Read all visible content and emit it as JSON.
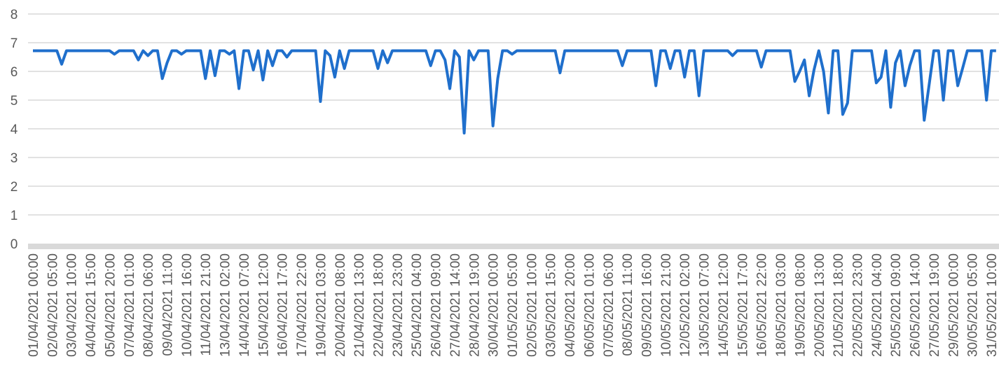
{
  "chart_data": {
    "type": "line",
    "categories": [
      "01/04/2021 00:00",
      null,
      null,
      null,
      "02/04/2021 05:00",
      null,
      null,
      null,
      "03/04/2021 10:00",
      null,
      null,
      null,
      "04/04/2021 15:00",
      null,
      null,
      null,
      "05/04/2021 20:00",
      null,
      null,
      null,
      "07/04/2021 01:00",
      null,
      null,
      null,
      "08/04/2021 06:00",
      null,
      null,
      null,
      "09/04/2021 11:00",
      null,
      null,
      null,
      "10/04/2021 16:00",
      null,
      null,
      null,
      "11/04/2021 21:00",
      null,
      null,
      null,
      "13/04/2021 02:00",
      null,
      null,
      null,
      "14/04/2021 07:00",
      null,
      null,
      null,
      "15/04/2021 12:00",
      null,
      null,
      null,
      "16/04/2021 17:00",
      null,
      null,
      null,
      "17/04/2021 22:00",
      null,
      null,
      null,
      "19/04/2021 03:00",
      null,
      null,
      null,
      "20/04/2021 08:00",
      null,
      null,
      null,
      "21/04/2021 13:00",
      null,
      null,
      null,
      "22/04/2021 18:00",
      null,
      null,
      null,
      "23/04/2021 23:00",
      null,
      null,
      null,
      "25/04/2021 04:00",
      null,
      null,
      null,
      "26/04/2021 09:00",
      null,
      null,
      null,
      "27/04/2021 14:00",
      null,
      null,
      null,
      "28/04/2021 19:00",
      null,
      null,
      null,
      "30/04/2021 00:00",
      null,
      null,
      null,
      "01/05/2021 05:00",
      null,
      null,
      null,
      "02/05/2021 10:00",
      null,
      null,
      null,
      "03/05/2021 15:00",
      null,
      null,
      null,
      "04/05/2021 20:00",
      null,
      null,
      null,
      "06/05/2021 01:00",
      null,
      null,
      null,
      "07/05/2021 06:00",
      null,
      null,
      null,
      "08/05/2021 11:00",
      null,
      null,
      null,
      "09/05/2021 16:00",
      null,
      null,
      null,
      "10/05/2021 21:00",
      null,
      null,
      null,
      "12/05/2021 02:00",
      null,
      null,
      null,
      "13/05/2021 07:00",
      null,
      null,
      null,
      "14/05/2021 12:00",
      null,
      null,
      null,
      "15/05/2021 17:00",
      null,
      null,
      null,
      "16/05/2021 22:00",
      null,
      null,
      null,
      "18/05/2021 03:00",
      null,
      null,
      null,
      "19/05/2021 08:00",
      null,
      null,
      null,
      "20/05/2021 13:00",
      null,
      null,
      null,
      "21/05/2021 18:00",
      null,
      null,
      null,
      "22/05/2021 23:00",
      null,
      null,
      null,
      "24/05/2021 04:00",
      null,
      null,
      null,
      "25/05/2021 09:00",
      null,
      null,
      null,
      "26/05/2021 14:00",
      null,
      null,
      null,
      "27/05/2021 19:00",
      null,
      null,
      null,
      "29/05/2021 00:00",
      null,
      null,
      null,
      "30/05/2021 05:00",
      null,
      null,
      null,
      "31/05/2021 10:00",
      null
    ],
    "series": [
      {
        "name": "",
        "color": "#1f6fcc",
        "values": [
          6.72,
          6.72,
          6.72,
          6.72,
          6.72,
          6.72,
          6.25,
          6.72,
          6.72,
          6.72,
          6.72,
          6.72,
          6.72,
          6.72,
          6.72,
          6.72,
          6.72,
          6.6,
          6.72,
          6.72,
          6.72,
          6.72,
          6.4,
          6.72,
          6.55,
          6.72,
          6.72,
          5.75,
          6.3,
          6.72,
          6.72,
          6.6,
          6.72,
          6.72,
          6.72,
          6.72,
          5.75,
          6.72,
          5.85,
          6.72,
          6.72,
          6.6,
          6.72,
          5.4,
          6.72,
          6.72,
          6.05,
          6.72,
          5.7,
          6.72,
          6.2,
          6.72,
          6.72,
          6.5,
          6.72,
          6.72,
          6.72,
          6.72,
          6.72,
          6.72,
          4.95,
          6.72,
          6.55,
          5.8,
          6.72,
          6.1,
          6.72,
          6.72,
          6.72,
          6.72,
          6.72,
          6.72,
          6.1,
          6.72,
          6.3,
          6.72,
          6.72,
          6.72,
          6.72,
          6.72,
          6.72,
          6.72,
          6.72,
          6.2,
          6.72,
          6.72,
          6.4,
          5.4,
          6.72,
          6.5,
          3.85,
          6.72,
          6.4,
          6.72,
          6.72,
          6.72,
          4.1,
          5.75,
          6.72,
          6.72,
          6.6,
          6.72,
          6.72,
          6.72,
          6.72,
          6.72,
          6.72,
          6.72,
          6.72,
          6.72,
          5.95,
          6.72,
          6.72,
          6.72,
          6.72,
          6.72,
          6.72,
          6.72,
          6.72,
          6.72,
          6.72,
          6.72,
          6.72,
          6.2,
          6.72,
          6.72,
          6.72,
          6.72,
          6.72,
          6.72,
          5.5,
          6.72,
          6.72,
          6.1,
          6.72,
          6.72,
          5.8,
          6.72,
          6.72,
          5.15,
          6.72,
          6.72,
          6.72,
          6.72,
          6.72,
          6.72,
          6.55,
          6.72,
          6.72,
          6.72,
          6.72,
          6.72,
          6.15,
          6.72,
          6.72,
          6.72,
          6.72,
          6.72,
          6.72,
          5.65,
          6.0,
          6.4,
          5.15,
          6.05,
          6.72,
          6.0,
          4.55,
          6.72,
          6.72,
          4.5,
          4.9,
          6.72,
          6.72,
          6.72,
          6.72,
          6.72,
          5.6,
          5.8,
          6.72,
          4.75,
          6.3,
          6.72,
          5.5,
          6.2,
          6.72,
          6.72,
          4.3,
          5.5,
          6.72,
          6.72,
          5.0,
          6.72,
          6.72,
          5.5,
          6.1,
          6.72,
          6.72,
          6.72,
          6.72,
          5.0,
          6.72,
          6.72
        ]
      }
    ],
    "ylim": [
      0,
      8
    ],
    "yticks": [
      0,
      1,
      2,
      3,
      4,
      5,
      6,
      7,
      8
    ],
    "grid": true
  }
}
